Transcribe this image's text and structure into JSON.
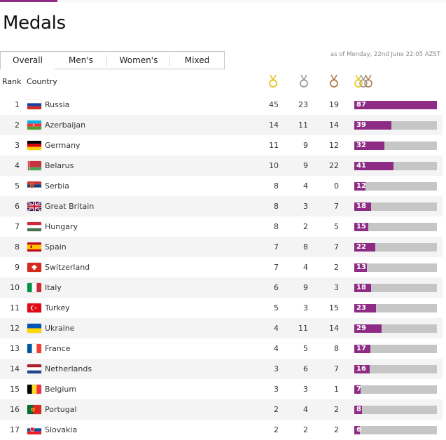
{
  "page": {
    "title": "Medals"
  },
  "tabs": [
    {
      "label": "Overall",
      "active": true
    },
    {
      "label": "Men's",
      "active": false
    },
    {
      "label": "Women's",
      "active": false
    },
    {
      "label": "Mixed",
      "active": false
    }
  ],
  "as_of": "as of Monday, 22nd June 22:05 AZST",
  "columns": {
    "rank": "Rank",
    "country": "Country",
    "gold_icon": "gold-medal-icon",
    "silver_icon": "silver-medal-icon",
    "bronze_icon": "bronze-medal-icon",
    "total_icon": "total-medals-icon"
  },
  "colors": {
    "accent": "#8e2b84",
    "bar_bg": "#c6c6c6",
    "gold": "#e6c21b",
    "silver": "#9a9a9a",
    "bronze": "#b07a4a"
  },
  "max_total": 87,
  "rows": [
    {
      "rank": "1",
      "country": "Russia",
      "flag": "russia",
      "gold": "45",
      "silver": "23",
      "bronze": "19",
      "total": "87"
    },
    {
      "rank": "2",
      "country": "Azerbaijan",
      "flag": "azerbaijan",
      "gold": "14",
      "silver": "11",
      "bronze": "14",
      "total": "39"
    },
    {
      "rank": "3",
      "country": "Germany",
      "flag": "germany",
      "gold": "11",
      "silver": "9",
      "bronze": "12",
      "total": "32"
    },
    {
      "rank": "4",
      "country": "Belarus",
      "flag": "belarus",
      "gold": "10",
      "silver": "9",
      "bronze": "22",
      "total": "41"
    },
    {
      "rank": "5",
      "country": "Serbia",
      "flag": "serbia",
      "gold": "8",
      "silver": "4",
      "bronze": "0",
      "total": "12"
    },
    {
      "rank": "6",
      "country": "Great Britain",
      "flag": "great-britain",
      "gold": "8",
      "silver": "3",
      "bronze": "7",
      "total": "18"
    },
    {
      "rank": "7",
      "country": "Hungary",
      "flag": "hungary",
      "gold": "8",
      "silver": "2",
      "bronze": "5",
      "total": "15"
    },
    {
      "rank": "8",
      "country": "Spain",
      "flag": "spain",
      "gold": "7",
      "silver": "8",
      "bronze": "7",
      "total": "22"
    },
    {
      "rank": "9",
      "country": "Switzerland",
      "flag": "switzerland",
      "gold": "7",
      "silver": "4",
      "bronze": "2",
      "total": "13"
    },
    {
      "rank": "10",
      "country": "Italy",
      "flag": "italy",
      "gold": "6",
      "silver": "9",
      "bronze": "3",
      "total": "18"
    },
    {
      "rank": "11",
      "country": "Turkey",
      "flag": "turkey",
      "gold": "5",
      "silver": "3",
      "bronze": "15",
      "total": "23"
    },
    {
      "rank": "12",
      "country": "Ukraine",
      "flag": "ukraine",
      "gold": "4",
      "silver": "11",
      "bronze": "14",
      "total": "29"
    },
    {
      "rank": "13",
      "country": "France",
      "flag": "france",
      "gold": "4",
      "silver": "5",
      "bronze": "8",
      "total": "17"
    },
    {
      "rank": "14",
      "country": "Netherlands",
      "flag": "netherlands",
      "gold": "3",
      "silver": "6",
      "bronze": "7",
      "total": "16"
    },
    {
      "rank": "15",
      "country": "Belgium",
      "flag": "belgium",
      "gold": "3",
      "silver": "3",
      "bronze": "1",
      "total": "7"
    },
    {
      "rank": "16",
      "country": "Portugal",
      "flag": "portugal",
      "gold": "2",
      "silver": "4",
      "bronze": "2",
      "total": "8"
    },
    {
      "rank": "17",
      "country": "Slovakia",
      "flag": "slovakia",
      "gold": "2",
      "silver": "2",
      "bronze": "2",
      "total": "6"
    }
  ]
}
